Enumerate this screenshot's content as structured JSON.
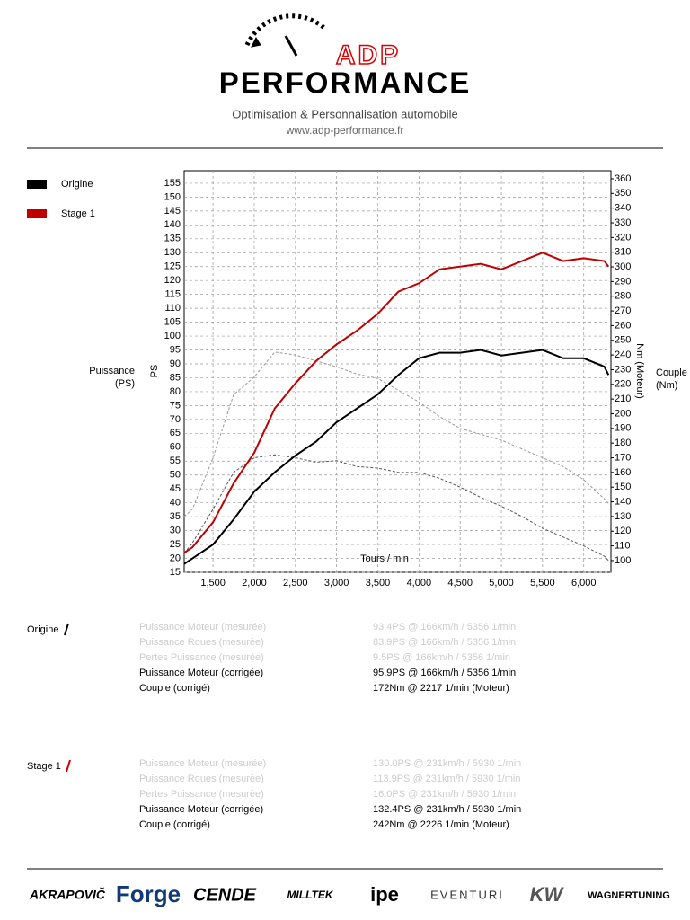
{
  "header": {
    "logo_top": "ADP",
    "logo_bottom": "PERFORMANCE",
    "tagline": "Optimisation & Personnalisation automobile",
    "url": "www.adp-performance.fr"
  },
  "chart_data": {
    "type": "line",
    "xlabel": "Tours / min",
    "ylabel": "PS",
    "y2label": "Nm (Moteur)",
    "ylabel_outer": [
      "Puissance",
      "(PS)"
    ],
    "y2label_outer": [
      "Couple",
      "(Nm)"
    ],
    "x": [
      1150,
      1250,
      1500,
      1750,
      2000,
      2250,
      2500,
      2750,
      3000,
      3250,
      3500,
      3750,
      4000,
      4250,
      4500,
      4750,
      5000,
      5250,
      5500,
      5750,
      6000,
      6250,
      6300
    ],
    "series": [
      {
        "name": "Origine",
        "color": "#000000",
        "torque_color": "#555555",
        "values": [
          18,
          20,
          25,
          34,
          44,
          51,
          57,
          62,
          69,
          74,
          79,
          86,
          92,
          94,
          94,
          95,
          93,
          94,
          95,
          92,
          92,
          89,
          86
        ],
        "y2_values": [
          105,
          112,
          135,
          160,
          170,
          172,
          170,
          167,
          168,
          164,
          163,
          160,
          160,
          156,
          150,
          143,
          137,
          130,
          122,
          116,
          110,
          103,
          100
        ]
      },
      {
        "name": "Stage 1",
        "color": "#c00000",
        "torque_color": "#999999",
        "values": [
          22,
          24,
          33,
          47,
          58,
          74,
          83,
          91,
          97,
          102,
          108,
          116,
          119,
          124,
          125,
          126,
          124,
          127,
          130,
          127,
          128,
          127,
          125
        ],
        "y2_values": [
          130,
          135,
          170,
          213,
          225,
          242,
          240,
          236,
          232,
          227,
          224,
          216,
          208,
          198,
          190,
          186,
          182,
          176,
          170,
          164,
          155,
          142,
          139
        ]
      }
    ],
    "xlim": [
      1150,
      6330
    ],
    "ylim": [
      15,
      159.5
    ],
    "y2lim": [
      92,
      365.5
    ],
    "xticks": [
      {
        "value": 1500,
        "label": "1,500"
      },
      {
        "value": 2000,
        "label": "2,000"
      },
      {
        "value": 2500,
        "label": "2,500"
      },
      {
        "value": 3000,
        "label": "3,000"
      },
      {
        "value": 3500,
        "label": "3,500"
      },
      {
        "value": 4000,
        "label": "4,000"
      },
      {
        "value": 4500,
        "label": "4,500"
      },
      {
        "value": 5000,
        "label": "5,000"
      },
      {
        "value": 5500,
        "label": "5,500"
      },
      {
        "value": 6000,
        "label": "6,000"
      }
    ],
    "yticks": [
      15,
      20,
      25,
      30,
      35,
      40,
      45,
      50,
      55,
      60,
      65,
      70,
      75,
      80,
      85,
      90,
      95,
      100,
      105,
      110,
      115,
      120,
      125,
      130,
      135,
      140,
      145,
      150,
      155
    ],
    "y2ticks": [
      100,
      110,
      120,
      130,
      140,
      150,
      160,
      170,
      180,
      190,
      200,
      210,
      220,
      230,
      240,
      250,
      260,
      270,
      280,
      290,
      300,
      310,
      320,
      330,
      340,
      350,
      360
    ],
    "grid": true
  },
  "results": [
    {
      "label": "Origine",
      "rows": [
        {
          "name": "Puissance Moteur (mesurée)",
          "value": "93.4PS @ 166km/h / 5356 1/min",
          "faded": true
        },
        {
          "name": "Puissance Roues (mesurée)",
          "value": "83.9PS @ 166km/h / 5356 1/min",
          "faded": true
        },
        {
          "name": "Pertes Puissance (mesurée)",
          "value": "9.5PS @ 166km/h / 5356 1/min",
          "faded": true
        },
        {
          "name": "Puissance Moteur (corrigée)",
          "value": "95.9PS @ 166km/h / 5356 1/min",
          "faded": false
        },
        {
          "name": "Couple (corrigé)",
          "value": "172Nm @ 2217 1/min (Moteur)",
          "faded": false
        }
      ]
    },
    {
      "label": "Stage 1",
      "rows": [
        {
          "name": "Puissance Moteur (mesurée)",
          "value": "130.0PS @ 231km/h / 5930 1/min",
          "faded": true
        },
        {
          "name": "Puissance Roues (mesurée)",
          "value": "113.9PS @ 231km/h / 5930 1/min",
          "faded": true
        },
        {
          "name": "Pertes Puissance (mesurée)",
          "value": "16.0PS @ 231km/h / 5930 1/min",
          "faded": true
        },
        {
          "name": "Puissance Moteur (corrigée)",
          "value": "132.4PS @ 231km/h / 5930 1/min",
          "faded": false
        },
        {
          "name": "Couple (corrigé)",
          "value": "242Nm @ 2226 1/min (Moteur)",
          "faded": false
        }
      ]
    }
  ],
  "brands": [
    "AKRAPOVIČ",
    "Forge",
    "CENDE",
    "MILLTEK",
    "ipe",
    "EVENTURI",
    "KW",
    "WAGNERTUNING"
  ]
}
